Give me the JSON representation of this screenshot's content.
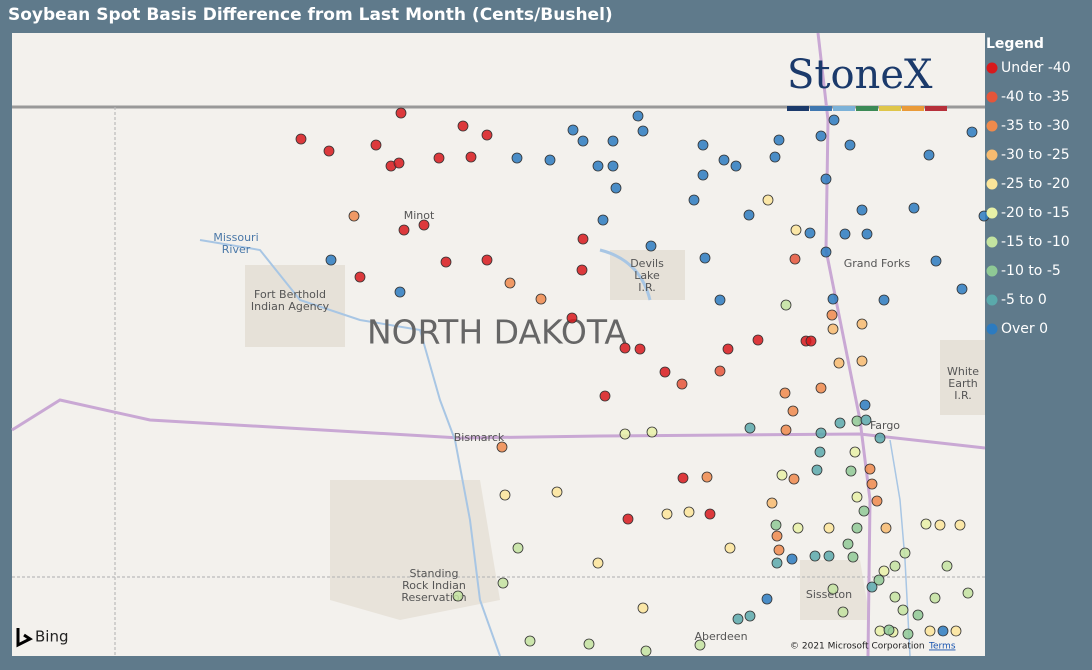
{
  "title": "Soybean Spot Basis Difference from Last Month (Cents/Bushel)",
  "legend": {
    "title": "Legend",
    "items": [
      {
        "label": "Under -40",
        "color": "#d7191c"
      },
      {
        "label": "-40 to -35",
        "color": "#e5553a"
      },
      {
        "label": "-35 to -30",
        "color": "#ef8a4c"
      },
      {
        "label": "-30 to -25",
        "color": "#f7bb70"
      },
      {
        "label": "-25 to -20",
        "color": "#fbe59a"
      },
      {
        "label": "-20 to -15",
        "color": "#e8f1a7"
      },
      {
        "label": "-15 to -10",
        "color": "#c3e3a0"
      },
      {
        "label": "-10 to -5",
        "color": "#8fc995"
      },
      {
        "label": "-5 to 0",
        "color": "#5aa9ab"
      },
      {
        "label": "Over 0",
        "color": "#2c7bc0"
      }
    ]
  },
  "map": {
    "state_label": "NORTH DAKOTA",
    "places": [
      {
        "lines": [
          "Minot"
        ]
      },
      {
        "lines": [
          "Missouri",
          "River"
        ]
      },
      {
        "lines": [
          "Fort Berthold",
          "Indian Agency"
        ]
      },
      {
        "lines": [
          "Devils",
          "Lake",
          "I.R."
        ]
      },
      {
        "lines": [
          "Grand Forks"
        ]
      },
      {
        "lines": [
          "White",
          "Earth",
          "I.R."
        ]
      },
      {
        "lines": [
          "Bismarck"
        ]
      },
      {
        "lines": [
          "Fargo"
        ]
      },
      {
        "lines": [
          "Standing",
          "Rock Indian",
          "Reservation"
        ]
      },
      {
        "lines": [
          "Sisseton"
        ]
      },
      {
        "lines": [
          "Aberdeen"
        ]
      }
    ]
  },
  "brand": "StoneX",
  "attribution": {
    "provider": "Bing",
    "copyright": "© 2021 Microsoft Corporation",
    "terms": "Terms"
  }
}
